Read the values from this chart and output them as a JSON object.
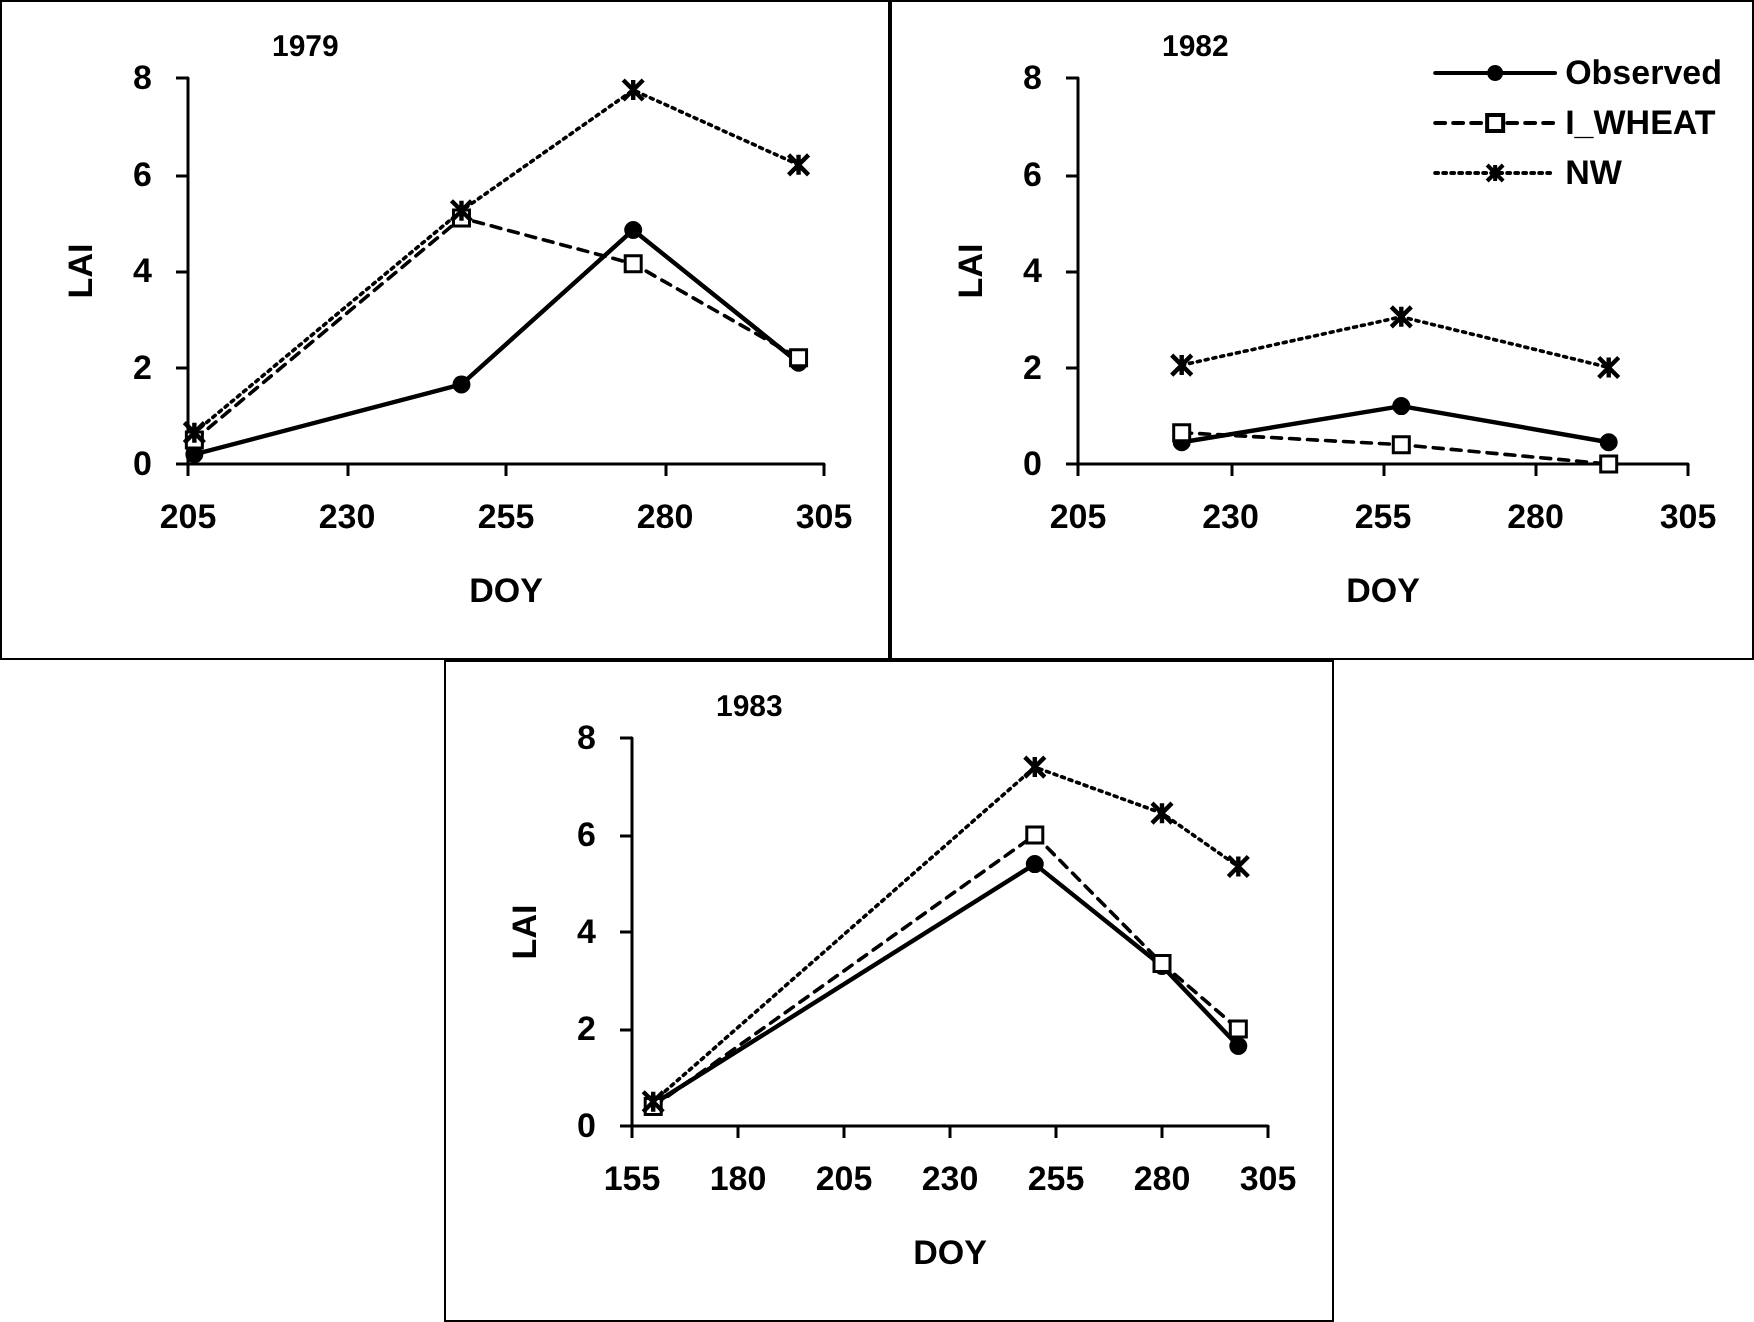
{
  "chart_data": [
    {
      "type": "line",
      "title": "1979",
      "xlabel": "DOY",
      "ylabel": "LAI",
      "xlim": [
        205,
        305
      ],
      "xticks": [
        205,
        230,
        255,
        280,
        305
      ],
      "ylim": [
        0,
        8
      ],
      "yticks": [
        0,
        2,
        4,
        6,
        8
      ],
      "grid": false,
      "legend": false,
      "series": [
        {
          "color": "#000000",
          "marker": "circle",
          "line_style": "solid",
          "x": [
            206,
            248,
            275,
            301
          ],
          "values": [
            0.2,
            1.65,
            4.85,
            2.1
          ]
        },
        {
          "color": "#000000",
          "marker": "square",
          "line_style": "dashed",
          "x": [
            206,
            248,
            275,
            301
          ],
          "values": [
            0.5,
            5.1,
            4.15,
            2.2
          ]
        },
        {
          "color": "#000000",
          "marker": "cross",
          "line_style": "dotted",
          "x": [
            206,
            248,
            275,
            301
          ],
          "values": [
            0.65,
            5.25,
            7.75,
            6.2
          ]
        }
      ]
    },
    {
      "type": "line",
      "title": "1982",
      "xlabel": "DOY",
      "ylabel": "LAI",
      "xlim": [
        205,
        305
      ],
      "xticks": [
        205,
        230,
        255,
        280,
        305
      ],
      "ylim": [
        0,
        8
      ],
      "yticks": [
        0,
        2,
        4,
        6,
        8
      ],
      "grid": false,
      "legend": "top right",
      "series": [
        {
          "name": "Observed",
          "color": "#000000",
          "marker": "circle",
          "line_style": "solid",
          "x": [
            222,
            258,
            292
          ],
          "values": [
            0.45,
            1.2,
            0.45
          ]
        },
        {
          "name": "I_WHEAT",
          "color": "#000000",
          "marker": "square",
          "line_style": "dashed",
          "x": [
            222,
            258,
            292
          ],
          "values": [
            0.65,
            0.4,
            0
          ]
        },
        {
          "name": "NW",
          "color": "#000000",
          "marker": "cross",
          "line_style": "dotted",
          "x": [
            222,
            258,
            292
          ],
          "values": [
            2.05,
            3.05,
            2
          ]
        }
      ]
    },
    {
      "type": "line",
      "title": "1983",
      "xlabel": "DOY",
      "ylabel": "LAI",
      "xlim": [
        155,
        305
      ],
      "xticks": [
        155,
        180,
        205,
        230,
        255,
        280,
        305
      ],
      "ylim": [
        0,
        8
      ],
      "yticks": [
        0,
        2,
        4,
        6,
        8
      ],
      "grid": false,
      "legend": false,
      "series": [
        {
          "color": "#000000",
          "marker": "circle",
          "line_style": "solid",
          "x": [
            160,
            250,
            280,
            298
          ],
          "values": [
            0.45,
            5.4,
            3.3,
            1.65
          ]
        },
        {
          "color": "#000000",
          "marker": "square",
          "line_style": "dashed",
          "x": [
            160,
            250,
            280,
            298
          ],
          "values": [
            0.4,
            6,
            3.35,
            2
          ]
        },
        {
          "color": "#000000",
          "marker": "cross",
          "line_style": "dotted",
          "x": [
            160,
            250,
            280,
            298
          ],
          "values": [
            0.5,
            7.4,
            6.45,
            5.35
          ]
        }
      ]
    }
  ]
}
